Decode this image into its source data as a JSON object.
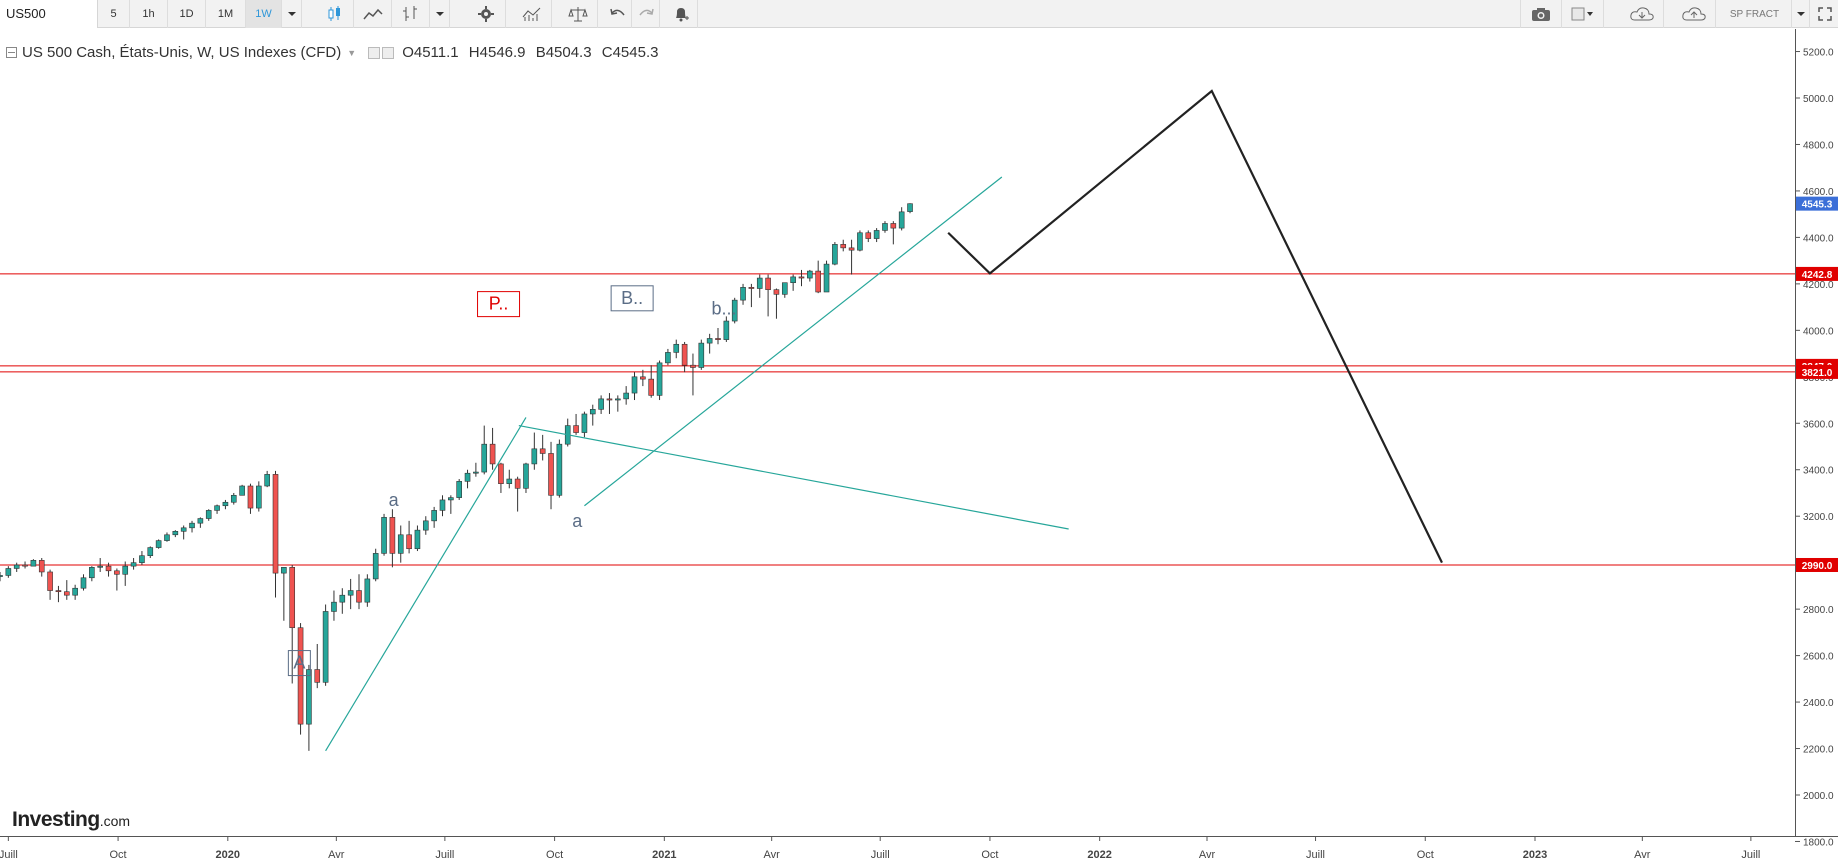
{
  "toolbar": {
    "symbol": "US500",
    "intervals": [
      "5",
      "1h",
      "1D",
      "1M",
      "1W"
    ],
    "active_interval": "1W",
    "user_label": "SP FRACT"
  },
  "legend": {
    "title": "US 500 Cash, États-Unis, W, US Indexes (CFD)",
    "open": "O4511.1",
    "high": "H4546.9",
    "low": "B4504.3",
    "close": "C4545.3"
  },
  "brand": {
    "name": "Investing",
    "suffix": ".com"
  },
  "colors": {
    "up": "#26a69a",
    "down": "#ef5350",
    "level": "#e00000",
    "trend": "#26a69a",
    "projection": "#222222",
    "last_price": "#3b6fd8"
  },
  "chart_data": {
    "type": "candlestick",
    "symbol": "US500",
    "timeframe": "W",
    "ylim": [
      1750,
      5300
    ],
    "y_ticks": [
      1800,
      2000,
      2200,
      2400,
      2600,
      2800,
      3000,
      3200,
      3400,
      3600,
      3800,
      4000,
      4200,
      4400,
      4600,
      4800,
      5000,
      5200
    ],
    "y_tick_labels": [
      "1800.0",
      "2000.0",
      "2200.0",
      "2400.0",
      "2600.0",
      "2800.0",
      "3000.0",
      "3200.0",
      "3400.0",
      "3600.0",
      "3800.0",
      "4000.0",
      "4200.0",
      "4400.0",
      "4600.0",
      "4800.0",
      "5000.0",
      "5200.0"
    ],
    "x_range": [
      "2019-06-24",
      "2023-08-07"
    ],
    "x_ticks": [
      {
        "date": "2019-07-01",
        "label": "Juill"
      },
      {
        "date": "2019-10-01",
        "label": "Oct"
      },
      {
        "date": "2020-01-01",
        "label": "2020"
      },
      {
        "date": "2020-04-01",
        "label": "Avr"
      },
      {
        "date": "2020-07-01",
        "label": "Juill"
      },
      {
        "date": "2020-10-01",
        "label": "Oct"
      },
      {
        "date": "2021-01-01",
        "label": "2021"
      },
      {
        "date": "2021-04-01",
        "label": "Avr"
      },
      {
        "date": "2021-07-01",
        "label": "Juill"
      },
      {
        "date": "2021-10-01",
        "label": "Oct"
      },
      {
        "date": "2022-01-01",
        "label": "2022"
      },
      {
        "date": "2022-04-01",
        "label": "Avr"
      },
      {
        "date": "2022-07-01",
        "label": "Juill"
      },
      {
        "date": "2022-10-01",
        "label": "Oct"
      },
      {
        "date": "2023-01-01",
        "label": "2023"
      },
      {
        "date": "2023-04-01",
        "label": "Avr"
      },
      {
        "date": "2023-07-01",
        "label": "Juill"
      }
    ],
    "candles_start": "2019-06-24",
    "candles_interval_days": 7,
    "ohlc": [
      [
        2940,
        2960,
        2920,
        2945
      ],
      [
        2945,
        2985,
        2935,
        2975
      ],
      [
        2975,
        3000,
        2960,
        2990
      ],
      [
        2990,
        3005,
        2975,
        2985
      ],
      [
        2985,
        3015,
        2990,
        3010
      ],
      [
        3010,
        3020,
        2940,
        2960
      ],
      [
        2960,
        2970,
        2840,
        2880
      ],
      [
        2880,
        2900,
        2830,
        2875
      ],
      [
        2875,
        2925,
        2840,
        2860
      ],
      [
        2860,
        2905,
        2840,
        2890
      ],
      [
        2890,
        2950,
        2880,
        2935
      ],
      [
        2935,
        2985,
        2920,
        2980
      ],
      [
        2980,
        3020,
        2960,
        2985
      ],
      [
        2985,
        3000,
        2940,
        2965
      ],
      [
        2965,
        2975,
        2880,
        2950
      ],
      [
        2950,
        3005,
        2900,
        2985
      ],
      [
        2985,
        3020,
        2970,
        3000
      ],
      [
        3000,
        3050,
        2990,
        3030
      ],
      [
        3030,
        3070,
        3020,
        3065
      ],
      [
        3065,
        3100,
        3060,
        3095
      ],
      [
        3095,
        3130,
        3090,
        3120
      ],
      [
        3120,
        3140,
        3110,
        3135
      ],
      [
        3135,
        3160,
        3100,
        3150
      ],
      [
        3150,
        3180,
        3130,
        3170
      ],
      [
        3170,
        3195,
        3150,
        3190
      ],
      [
        3190,
        3230,
        3180,
        3225
      ],
      [
        3225,
        3250,
        3210,
        3245
      ],
      [
        3245,
        3270,
        3230,
        3260
      ],
      [
        3260,
        3300,
        3250,
        3290
      ],
      [
        3290,
        3335,
        3290,
        3330
      ],
      [
        3330,
        3340,
        3210,
        3235
      ],
      [
        3235,
        3350,
        3220,
        3330
      ],
      [
        3330,
        3395,
        3325,
        3380
      ],
      [
        3380,
        3395,
        2850,
        2955
      ],
      [
        2955,
        2975,
        2750,
        2980
      ],
      [
        2980,
        2990,
        2480,
        2720
      ],
      [
        2720,
        2740,
        2260,
        2305
      ],
      [
        2305,
        2560,
        2190,
        2540
      ],
      [
        2540,
        2650,
        2460,
        2485
      ],
      [
        2485,
        2820,
        2470,
        2790
      ],
      [
        2790,
        2880,
        2750,
        2830
      ],
      [
        2830,
        2890,
        2780,
        2860
      ],
      [
        2860,
        2930,
        2800,
        2880
      ],
      [
        2880,
        2950,
        2800,
        2830
      ],
      [
        2830,
        2950,
        2810,
        2930
      ],
      [
        2930,
        3060,
        2920,
        3040
      ],
      [
        3040,
        3210,
        3030,
        3195
      ],
      [
        3195,
        3230,
        2980,
        3040
      ],
      [
        3040,
        3160,
        3000,
        3120
      ],
      [
        3120,
        3180,
        3040,
        3060
      ],
      [
        3060,
        3160,
        3050,
        3140
      ],
      [
        3140,
        3200,
        3120,
        3180
      ],
      [
        3180,
        3240,
        3150,
        3225
      ],
      [
        3225,
        3290,
        3200,
        3270
      ],
      [
        3270,
        3290,
        3210,
        3280
      ],
      [
        3280,
        3360,
        3270,
        3350
      ],
      [
        3350,
        3400,
        3320,
        3385
      ],
      [
        3385,
        3430,
        3370,
        3390
      ],
      [
        3390,
        3590,
        3380,
        3510
      ],
      [
        3510,
        3580,
        3400,
        3425
      ],
      [
        3425,
        3430,
        3300,
        3340
      ],
      [
        3340,
        3400,
        3320,
        3360
      ],
      [
        3360,
        3370,
        3220,
        3320
      ],
      [
        3320,
        3430,
        3300,
        3425
      ],
      [
        3425,
        3560,
        3400,
        3490
      ],
      [
        3490,
        3550,
        3440,
        3470
      ],
      [
        3470,
        3520,
        3230,
        3290
      ],
      [
        3290,
        3530,
        3280,
        3510
      ],
      [
        3510,
        3620,
        3500,
        3590
      ],
      [
        3590,
        3640,
        3550,
        3560
      ],
      [
        3560,
        3650,
        3540,
        3640
      ],
      [
        3640,
        3680,
        3590,
        3660
      ],
      [
        3660,
        3720,
        3640,
        3705
      ],
      [
        3705,
        3730,
        3640,
        3700
      ],
      [
        3700,
        3720,
        3650,
        3705
      ],
      [
        3705,
        3760,
        3680,
        3730
      ],
      [
        3730,
        3820,
        3700,
        3800
      ],
      [
        3800,
        3830,
        3760,
        3790
      ],
      [
        3790,
        3850,
        3710,
        3720
      ],
      [
        3720,
        3870,
        3700,
        3860
      ],
      [
        3860,
        3920,
        3850,
        3905
      ],
      [
        3905,
        3960,
        3880,
        3940
      ],
      [
        3940,
        3950,
        3820,
        3850
      ],
      [
        3850,
        3900,
        3720,
        3840
      ],
      [
        3840,
        3960,
        3830,
        3945
      ],
      [
        3945,
        3985,
        3900,
        3965
      ],
      [
        3965,
        4010,
        3940,
        3960
      ],
      [
        3960,
        4060,
        3950,
        4040
      ],
      [
        4040,
        4140,
        4030,
        4130
      ],
      [
        4130,
        4200,
        4110,
        4185
      ],
      [
        4185,
        4200,
        4100,
        4180
      ],
      [
        4180,
        4240,
        4140,
        4225
      ],
      [
        4225,
        4240,
        4060,
        4175
      ],
      [
        4175,
        4180,
        4050,
        4155
      ],
      [
        4155,
        4200,
        4140,
        4205
      ],
      [
        4205,
        4240,
        4170,
        4230
      ],
      [
        4230,
        4260,
        4190,
        4225
      ],
      [
        4225,
        4260,
        4210,
        4255
      ],
      [
        4255,
        4300,
        4160,
        4165
      ],
      [
        4165,
        4300,
        4170,
        4285
      ],
      [
        4285,
        4380,
        4280,
        4370
      ],
      [
        4370,
        4390,
        4340,
        4355
      ],
      [
        4355,
        4390,
        4240,
        4345
      ],
      [
        4345,
        4430,
        4340,
        4420
      ],
      [
        4420,
        4430,
        4380,
        4395
      ],
      [
        4395,
        4440,
        4380,
        4430
      ],
      [
        4430,
        4470,
        4420,
        4460
      ],
      [
        4460,
        4470,
        4370,
        4440
      ],
      [
        4440,
        4530,
        4430,
        4510
      ],
      [
        4511,
        4547,
        4504,
        4545
      ]
    ],
    "horizontal_levels": [
      {
        "value": 4242.8,
        "label": "4242.8"
      },
      {
        "value": 3847.0,
        "label": "3847.0"
      },
      {
        "value": 3821.0,
        "label": "3821.0"
      },
      {
        "value": 2990.0,
        "label": "2990.0"
      }
    ],
    "last_price": {
      "value": 4545.3,
      "label": "4545.3"
    },
    "trendlines": [
      {
        "points": [
          [
            "2020-03-23",
            2190
          ],
          [
            "2020-09-07",
            3625
          ]
        ]
      },
      {
        "points": [
          [
            "2020-10-26",
            3245
          ],
          [
            "2021-10-11",
            4660
          ]
        ]
      },
      {
        "points": [
          [
            "2020-09-01",
            3590
          ],
          [
            "2021-12-06",
            3145
          ]
        ]
      }
    ],
    "projection": {
      "points": [
        [
          "2021-08-27",
          4420
        ],
        [
          "2021-10-01",
          4245
        ],
        [
          "2022-04-05",
          5030
        ],
        [
          "2022-10-15",
          3000
        ]
      ]
    },
    "annotations": [
      {
        "text": "P..",
        "date": "2020-08-15",
        "value": 4115,
        "box": true,
        "color": "#e00000"
      },
      {
        "text": "B..",
        "date": "2020-12-05",
        "value": 4140,
        "box": true,
        "color": "#5b6d86"
      },
      {
        "text": "b...",
        "date": "2021-02-20",
        "value": 4095,
        "box": false,
        "color": "#5b6d86"
      },
      {
        "text": "a",
        "date": "2020-05-19",
        "value": 3270,
        "box": false,
        "color": "#5b6d86"
      },
      {
        "text": "a",
        "date": "2020-10-20",
        "value": 3180,
        "box": false,
        "color": "#5b6d86"
      },
      {
        "text": "A",
        "date": "2020-03-01",
        "value": 2570,
        "box": true,
        "color": "#5b6d86"
      }
    ]
  }
}
